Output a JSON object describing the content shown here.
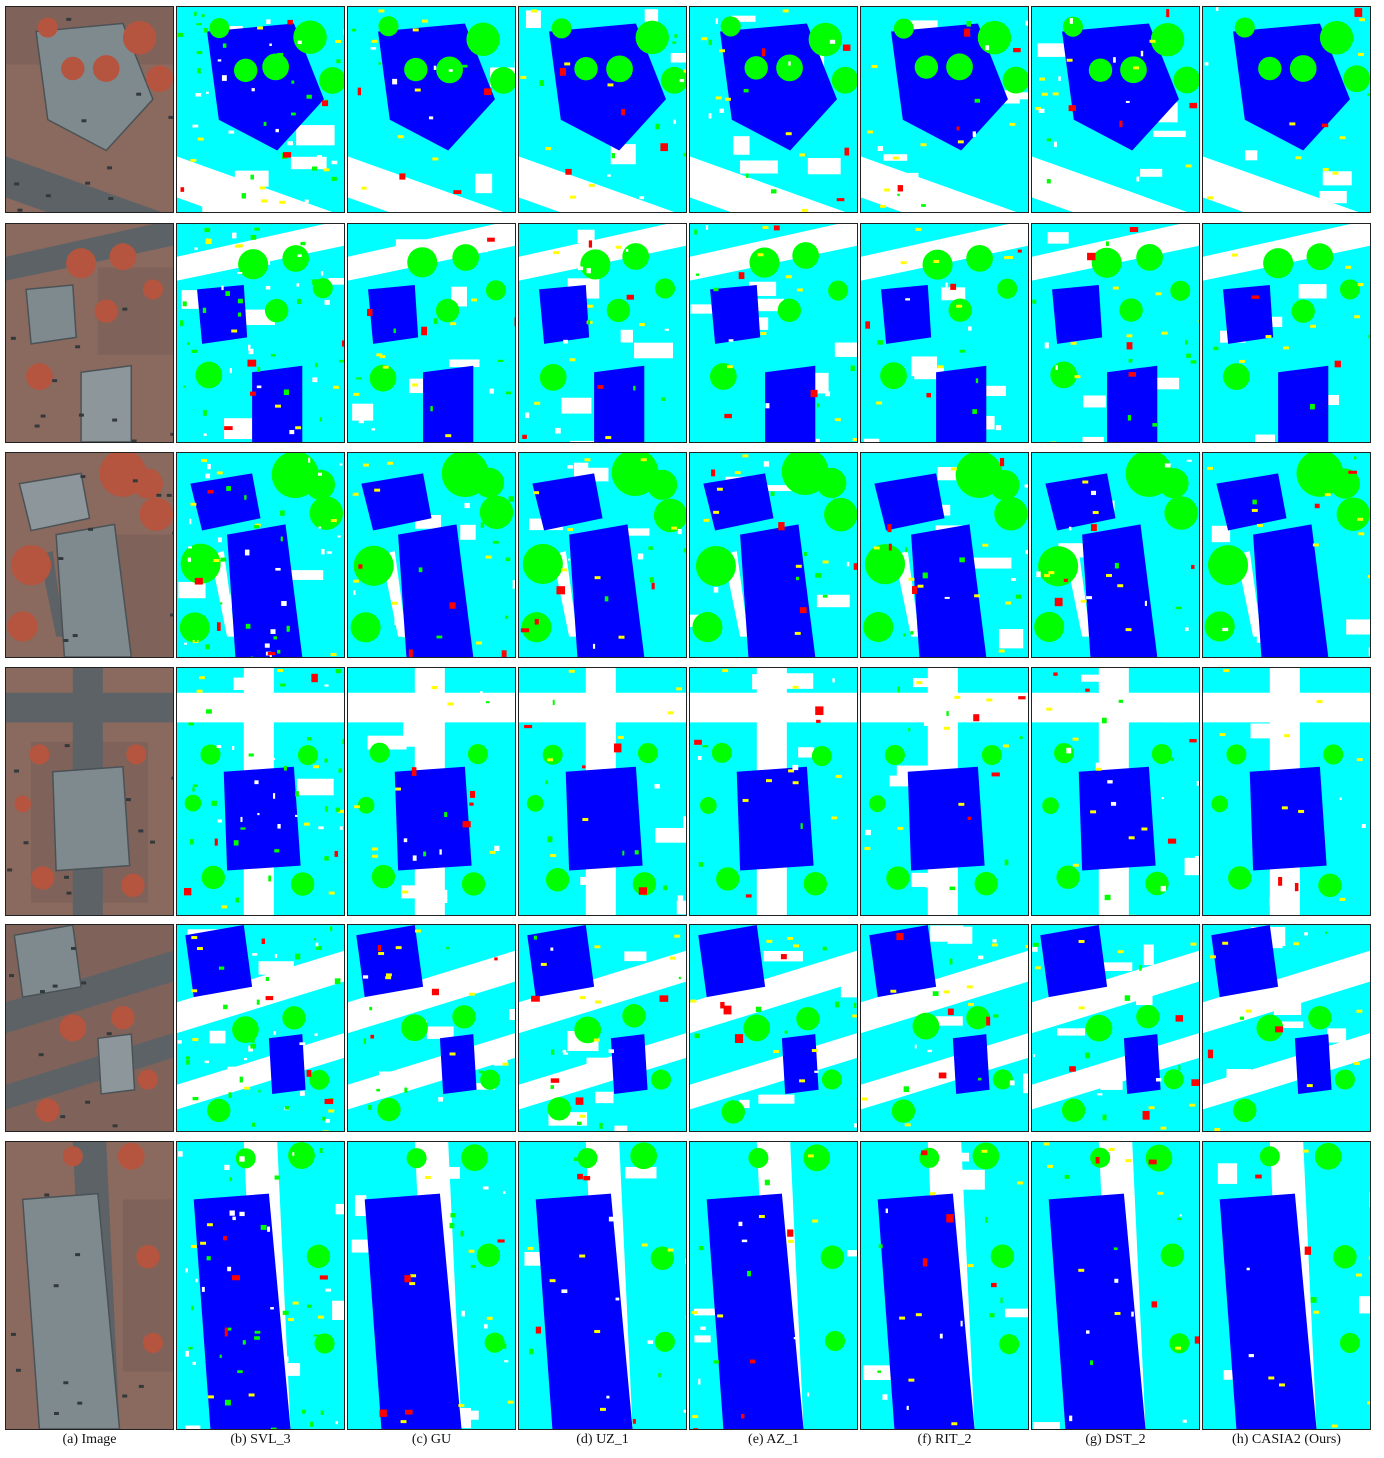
{
  "figure": {
    "captions": [
      "(a) Image",
      "(b) SVL_3",
      "(c) GU",
      "(d) UZ_1",
      "(e) AZ_1",
      "(f) RIT_2",
      "(g) DST_2",
      "(h) CASIA2 (Ours)"
    ],
    "columns": [
      "image",
      "svl-3",
      "gu",
      "uz-1",
      "az-1",
      "rit-2",
      "dst-2",
      "casia2-ours"
    ],
    "row_count": 6,
    "class_colors": {
      "impervious_surfaces": "#ffffff",
      "building": "#0000ff",
      "low_vegetation": "#00ffff",
      "tree": "#00ff00",
      "car": "#ffff00",
      "clutter": "#ff0000"
    },
    "photo_colors": {
      "roof": "#7f8a8f",
      "road": "#5d6266",
      "vegetation": "#b5553f",
      "ground": "#8a6a5e"
    }
  }
}
